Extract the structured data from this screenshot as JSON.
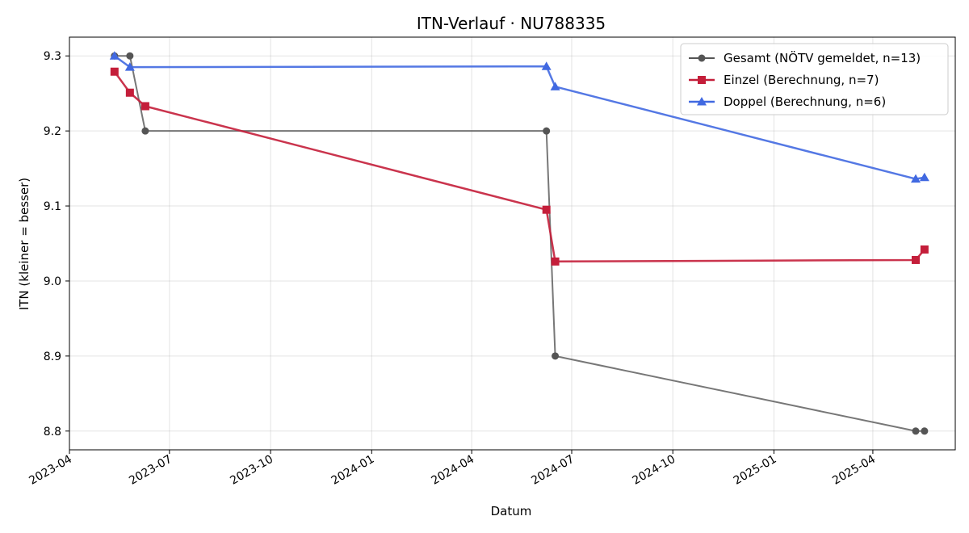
{
  "chart_data": {
    "type": "line",
    "title": "ITN-Verlauf · NU788335",
    "xlabel": "Datum",
    "ylabel": "ITN  (kleiner = besser)",
    "x_type": "date",
    "xlim": [
      "2023-04-01",
      "2025-06-15"
    ],
    "ylim": [
      8.775,
      9.325
    ],
    "x_ticks": [
      "2023-04",
      "2023-07",
      "2023-10",
      "2024-01",
      "2024-04",
      "2024-07",
      "2024-10",
      "2025-01",
      "2025-04"
    ],
    "y_ticks": [
      8.8,
      8.9,
      9.0,
      9.1,
      9.2,
      9.3
    ],
    "grid": true,
    "legend_position": "top-right",
    "series": [
      {
        "name": "Gesamt (NÖTV gemeldet, n=13)",
        "color": "#555555",
        "marker": "circle",
        "points": [
          {
            "x": "2023-05-12",
            "y": 9.3
          },
          {
            "x": "2023-05-26",
            "y": 9.3
          },
          {
            "x": "2023-06-09",
            "y": 9.2
          },
          {
            "x": "2024-06-08",
            "y": 9.2
          },
          {
            "x": "2024-06-16",
            "y": 8.9
          },
          {
            "x": "2025-05-10",
            "y": 8.8
          },
          {
            "x": "2025-05-18",
            "y": 8.8
          }
        ]
      },
      {
        "name": "Einzel (Berechnung, n=7)",
        "color": "#c41e3a",
        "marker": "square",
        "points": [
          {
            "x": "2023-05-12",
            "y": 9.279
          },
          {
            "x": "2023-05-26",
            "y": 9.251
          },
          {
            "x": "2023-06-09",
            "y": 9.233
          },
          {
            "x": "2024-06-08",
            "y": 9.095
          },
          {
            "x": "2024-06-16",
            "y": 9.026
          },
          {
            "x": "2025-05-10",
            "y": 9.028
          },
          {
            "x": "2025-05-18",
            "y": 9.042
          }
        ]
      },
      {
        "name": "Doppel (Berechnung, n=6)",
        "color": "#4169e1",
        "marker": "triangle",
        "points": [
          {
            "x": "2023-05-12",
            "y": 9.3
          },
          {
            "x": "2023-05-26",
            "y": 9.285
          },
          {
            "x": "2024-06-08",
            "y": 9.286
          },
          {
            "x": "2024-06-16",
            "y": 9.259
          },
          {
            "x": "2025-05-10",
            "y": 9.136
          },
          {
            "x": "2025-05-18",
            "y": 9.138
          }
        ]
      }
    ]
  }
}
